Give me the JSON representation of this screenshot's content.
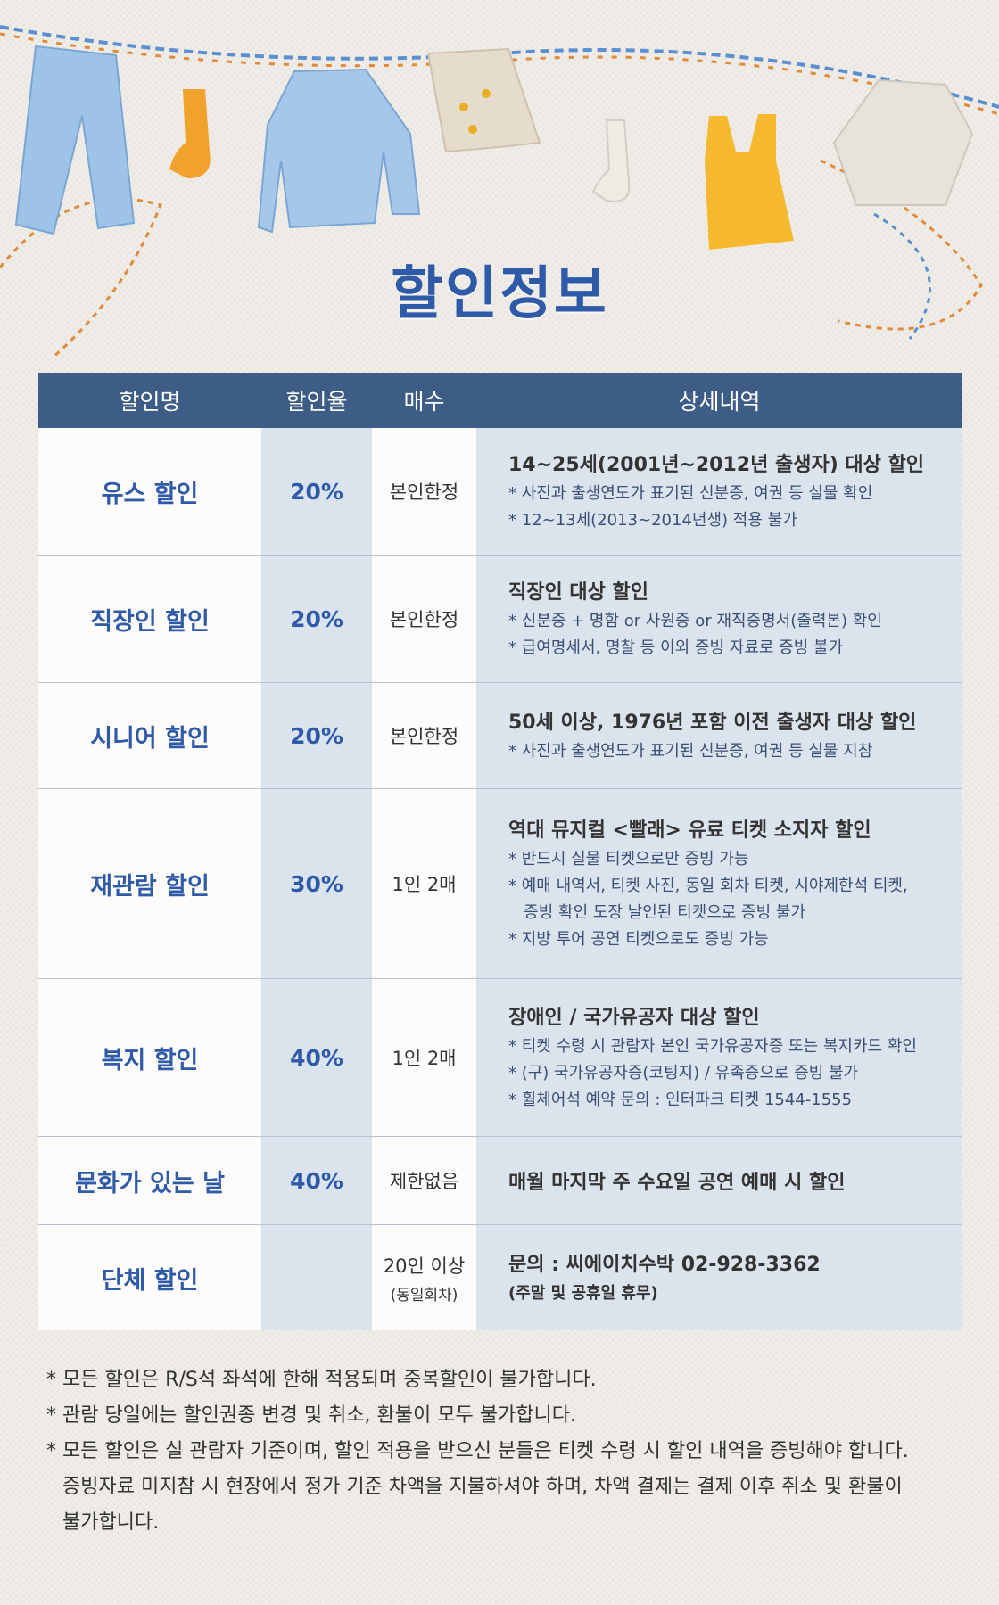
{
  "title": "할인정보",
  "headers": [
    "할인명",
    "할인율",
    "매수",
    "상세내역"
  ],
  "rows": [
    {
      "name": "유스 할인",
      "rate": "20%",
      "qty": "본인한정",
      "qty_sub": "",
      "main": "14~25세(2001년~2012년 출생자) 대상 할인",
      "subs": [
        "*  사진과 출생연도가 표기된 신분증, 여권 등 실물 확인",
        "*  12~13세(2013~2014년생) 적용 불가"
      ]
    },
    {
      "name": "직장인 할인",
      "rate": "20%",
      "qty": "본인한정",
      "qty_sub": "",
      "main": "직장인 대상 할인",
      "subs": [
        "*  신분증 + 명함 or 사원증 or 재직증명서(출력본) 확인",
        "*  급여명세서, 명찰 등 이외 증빙 자료로 증빙 불가"
      ]
    },
    {
      "name": "시니어 할인",
      "rate": "20%",
      "qty": "본인한정",
      "qty_sub": "",
      "main": "50세 이상, 1976년 포함 이전 출생자 대상 할인",
      "subs": [
        "* 사진과 출생연도가 표기된 신분증, 여권 등 실물 지참"
      ]
    },
    {
      "name": "재관람 할인",
      "rate": "30%",
      "qty": "1인 2매",
      "qty_sub": "",
      "main": "역대 뮤지컬 <빨래> 유료 티켓 소지자 할인",
      "subs": [
        "*  반드시 실물 티켓으로만 증빙 가능",
        "*  예매 내역서, 티켓 사진, 동일 회차 티켓, 시야제한석 티켓,",
        "   증빙 확인 도장 날인된 티켓으로 증빙 불가",
        "*  지방 투어 공연 티켓으로도 증빙 가능"
      ]
    },
    {
      "name": "복지 할인",
      "rate": "40%",
      "qty": "1인 2매",
      "qty_sub": "",
      "main": "장애인 / 국가유공자 대상 할인",
      "subs": [
        "* 티켓 수령 시 관람자 본인 국가유공자증 또는 복지카드 확인",
        "* (구) 국가유공자증(코팅지) / 유족증으로 증빙 불가",
        "* 휠체어석 예약 문의 : 인터파크 티켓 1544-1555"
      ]
    },
    {
      "name": "문화가 있는 날",
      "rate": "40%",
      "qty": "제한없음",
      "qty_sub": "",
      "main": "매월 마지막 주 수요일 공연 예매 시 할인",
      "subs": []
    },
    {
      "name": "단체 할인",
      "rate": "",
      "qty": "20인 이상",
      "qty_sub": "(동일회차)",
      "main": "문의 : 씨에이치수박 02-928-3362",
      "subs": [
        "(주말 및 공휴일 휴무)"
      ]
    }
  ],
  "notes": [
    "* 모든 할인은 R/S석 좌석에 한해 적용되며 중복할인이 불가합니다.",
    "*  관람 당일에는 할인권종 변경 및 취소, 환불이 모두 불가합니다.",
    "* 모든 할인은 실 관람자 기준이며, 할인 적용을 받으신 분들은 티켓 수령 시 할인 내역을 증빙해야 합니다.",
    "증빙자료 미지참 시 현장에서 정가 기준 차액을 지불하셔야 하며, 차액 결제는 결제 이후 취소 및 환불이",
    "불가합니다."
  ],
  "colors": {
    "header_bg": "#3e5d86",
    "accent": "#2e5aa8",
    "rate_col": "#dbe3ec",
    "detail_col": "#dbe3ec"
  },
  "illustrations": [
    "jeans-icon",
    "sock-icon",
    "shirt-icon",
    "jacket-icon",
    "sock-icon",
    "tank-top-icon",
    "sweater-icon"
  ]
}
